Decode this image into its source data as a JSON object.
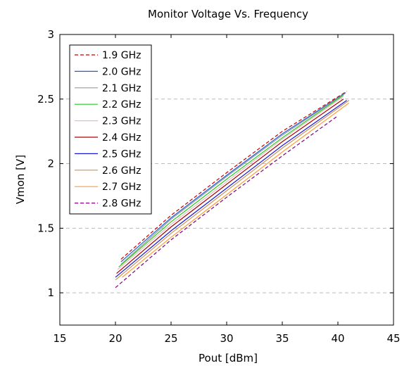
{
  "chart_data": {
    "type": "line",
    "title": "Monitor Voltage Vs. Frequency",
    "xlabel": "Pout [dBm]",
    "ylabel": "Vmon [V]",
    "xlim": [
      15,
      45
    ],
    "ylim": [
      0.75,
      3
    ],
    "xticks": [
      "15",
      "20",
      "25",
      "30",
      "35",
      "40",
      "45"
    ],
    "yticks": [
      "1",
      "1.5",
      "2",
      "2.5",
      "3"
    ],
    "grid": "horizontal dashed",
    "legend_position": "top-left",
    "series": [
      {
        "name": "1.9 GHz",
        "color": "#cc0000",
        "dash": "dashed",
        "points": [
          [
            20.5,
            1.26
          ],
          [
            25,
            1.6
          ],
          [
            30,
            1.93
          ],
          [
            35,
            2.25
          ],
          [
            40.8,
            2.56
          ]
        ]
      },
      {
        "name": "2.0 GHz",
        "color": "#1f5fd6",
        "dash": "solid",
        "points": [
          [
            20.5,
            1.24
          ],
          [
            25,
            1.58
          ],
          [
            30,
            1.91
          ],
          [
            35,
            2.23
          ],
          [
            40.7,
            2.55
          ]
        ]
      },
      {
        "name": "2.1 GHz",
        "color": "#9a9a9a",
        "dash": "solid",
        "points": [
          [
            20.5,
            1.22
          ],
          [
            25,
            1.57
          ],
          [
            30,
            1.9
          ],
          [
            35,
            2.22
          ],
          [
            40.6,
            2.54
          ]
        ]
      },
      {
        "name": "2.2 GHz",
        "color": "#22cc22",
        "dash": "solid",
        "points": [
          [
            20.3,
            1.2
          ],
          [
            25,
            1.55
          ],
          [
            30,
            1.88
          ],
          [
            35,
            2.2
          ],
          [
            40.5,
            2.53
          ]
        ]
      },
      {
        "name": "2.3 GHz",
        "color": "#f4b6c2",
        "dash": "solid",
        "points": [
          [
            20.2,
            1.18
          ],
          [
            25,
            1.53
          ],
          [
            30,
            1.86
          ],
          [
            35,
            2.19
          ],
          [
            40.5,
            2.52
          ]
        ]
      },
      {
        "name": "2.4 GHz",
        "color": "#b00000",
        "dash": "solid",
        "points": [
          [
            20.1,
            1.15
          ],
          [
            25,
            1.51
          ],
          [
            30,
            1.84
          ],
          [
            35,
            2.17
          ],
          [
            40.5,
            2.5
          ]
        ]
      },
      {
        "name": "2.5 GHz",
        "color": "#1a1ad6",
        "dash": "solid",
        "points": [
          [
            20,
            1.12
          ],
          [
            25,
            1.48
          ],
          [
            30,
            1.81
          ],
          [
            35,
            2.14
          ],
          [
            40.8,
            2.49
          ]
        ]
      },
      {
        "name": "2.6 GHz",
        "color": "#c8955a",
        "dash": "solid",
        "points": [
          [
            20,
            1.1
          ],
          [
            25,
            1.46
          ],
          [
            30,
            1.79
          ],
          [
            35,
            2.12
          ],
          [
            41,
            2.49
          ]
        ]
      },
      {
        "name": "2.7 GHz",
        "color": "#ff9a33",
        "dash": "solid",
        "points": [
          [
            20.6,
            1.12
          ],
          [
            25,
            1.43
          ],
          [
            30,
            1.76
          ],
          [
            35,
            2.09
          ],
          [
            41,
            2.47
          ]
        ]
      },
      {
        "name": "2.8 GHz",
        "color": "#800080",
        "dash": "dashed",
        "points": [
          [
            20,
            1.04
          ],
          [
            25,
            1.41
          ],
          [
            30,
            1.74
          ],
          [
            35,
            2.06
          ],
          [
            40,
            2.37
          ]
        ]
      }
    ]
  }
}
